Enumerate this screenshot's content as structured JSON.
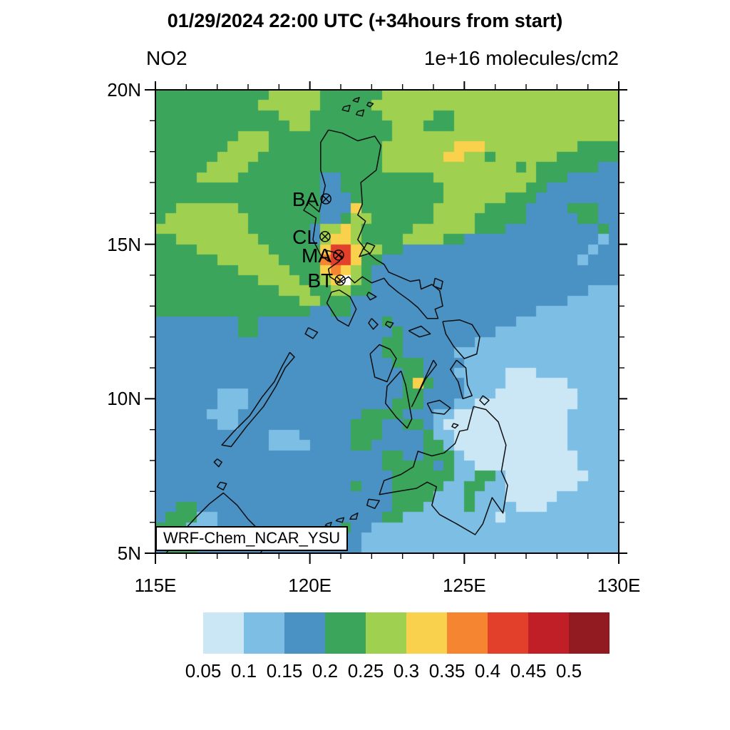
{
  "header": {
    "main_title": "01/29/2024 22:00 UTC (+34hours from start)",
    "subtitle_left": "NO2",
    "subtitle_right": "1e+16 molecules/cm2"
  },
  "model_label": "WRF-Chem_NCAR_YSU",
  "axes": {
    "lon": {
      "min": 115,
      "max": 130,
      "minor_step": 1,
      "major_step": 5,
      "tick_labels": [
        "115E",
        "120E",
        "125E",
        "130E"
      ]
    },
    "lat": {
      "min": 5,
      "max": 20,
      "minor_step": 1,
      "major_step": 5,
      "tick_labels": [
        "20N",
        "15N",
        "10N",
        "5N"
      ]
    }
  },
  "stations": [
    {
      "code": "BA",
      "lon": 120.52,
      "lat": 16.47
    },
    {
      "code": "CL",
      "lon": 120.49,
      "lat": 15.25
    },
    {
      "code": "MA",
      "lon": 120.93,
      "lat": 14.65
    },
    {
      "code": "BT",
      "lon": 120.98,
      "lat": 13.84
    }
  ],
  "colorbar": {
    "labels": [
      "0.05",
      "0.1",
      "0.15",
      "0.2",
      "0.25",
      "0.3",
      "0.35",
      "0.4",
      "0.45",
      "0.5"
    ],
    "colors": [
      "#cbe7f5",
      "#7dbee5",
      "#4a91c4",
      "#3aa55b",
      "#a0d04f",
      "#f9d14c",
      "#f68532",
      "#e2402b",
      "#c11f27",
      "#921b22"
    ]
  },
  "chart_data": {
    "type": "heatmap",
    "title": "01/29/2024 22:00 UTC (+34hours from start)",
    "variable": "NO2",
    "units": "1e+16 molecules/cm2",
    "xlabel_ticks": [
      "115E",
      "120E",
      "125E",
      "130E"
    ],
    "ylabel_ticks": [
      "20N",
      "15N",
      "10N",
      "5N"
    ],
    "lon_range": [
      115,
      130
    ],
    "lat_range": [
      5,
      20
    ],
    "levels": [
      0.05,
      0.1,
      0.15,
      0.2,
      0.25,
      0.3,
      0.35,
      0.4,
      0.45,
      0.5
    ],
    "legend_position": "bottom",
    "grid_size": [
      45,
      45
    ],
    "palette": {
      "w": "#ffffff",
      "0": "#cbe7f5",
      "1": "#7dbee5",
      "2": "#4a91c4",
      "3": "#3aa55b",
      "4": "#a0d04f",
      "5": "#f9d14c",
      "6": "#f68532",
      "7": "#e2402b",
      "8": "#c11f27",
      "9": "#921b22"
    },
    "cells": [
      "333333333334444433333344444444444444444444444",
      "333333333344444433333444444444444444444444444",
      "333333333333444333333344444334444444444444444",
      "333333333333344333333334443334444444444444444",
      "333333334443333333333334444444444444444444444",
      "333333344443333333333344444445554444444443333",
      "333333444433333333333344444455443444444333333",
      "333334444333333333333344444444444443433333322",
      "333344443333333322333333333444444444433322222",
      "333333333333333322333333333344444444332222222",
      "333333333333333322233333333344444433322222222",
      "334444443333333322253333333444443333222233322",
      "344444444333333322344333333444433333222223322",
      "444444444333333244543333344444433322222222232",
      "334444444433333245543333444433222222222222212",
      "333344444443333357754433222222222222222222122",
      "333333444444333367753322222222222222222221222",
      "333333334444433356543222222222222222222222222",
      "333333333344443345w43222222222222222222222222",
      "333333333333444334433222222222222222222222111",
      "333333333333334433322222222222222222222211111",
      "333333333333333223322222222222222222211111111",
      "222222223322222222222232222222222221111111111",
      "222222223322222222222223222222222111111111111",
      "222222222222222222222233222222211111111111111",
      "222222222222222222222233222221111111111111111",
      "222222222222222222222223332222111111111111111",
      "222222222222222222222222332221111100011111111",
      "222222222222222222222222353222111100000011111",
      "222222111222222222222222332222111000000001111",
      "222222111222222222222223332221100000000001111",
      "222221112222222222223333222110000000000011111",
      "222222112222222222233322332100000000000011111",
      "222222222221112222233322223110000000000011111",
      "222222222221111222233222223310000000000011111",
      "222222222222222222222233223331000000000001111",
      "222222222222222222222233333231100000000001111",
      "222222222222222222222223333331133100000000111",
      "222222222222222222232223333311331100000001111",
      "222222222222222222222223333111311100000111111",
      "223322222222222222222223331111311110001111111",
      "233311222222222222222233111111111011111111111",
      "333111222222222222322111111111111111111111111",
      "332222112222222222221111111111111111111111111",
      "233322222222222222221111111111111111111111111"
    ],
    "coastlines": [
      [
        [
          120.6,
          18.7
        ],
        [
          121.05,
          18.6
        ],
        [
          121.55,
          18.35
        ],
        [
          122.1,
          18.5
        ],
        [
          122.3,
          18.2
        ],
        [
          122.15,
          17.4
        ],
        [
          121.65,
          17.0
        ],
        [
          121.7,
          16.3
        ],
        [
          121.55,
          15.95
        ],
        [
          121.8,
          15.75
        ],
        [
          121.55,
          15.15
        ],
        [
          121.75,
          14.9
        ],
        [
          121.6,
          14.6
        ],
        [
          121.9,
          14.7
        ],
        [
          122.15,
          14.5
        ],
        [
          122.4,
          14.35
        ],
        [
          122.55,
          14.1
        ],
        [
          122.9,
          13.95
        ],
        [
          123.25,
          13.8
        ],
        [
          123.55,
          13.85
        ],
        [
          123.6,
          13.55
        ],
        [
          123.95,
          13.7
        ],
        [
          124.2,
          13.5
        ],
        [
          124.3,
          13.0
        ],
        [
          124.05,
          12.9
        ],
        [
          124.15,
          12.6
        ],
        [
          123.8,
          12.6
        ],
        [
          123.5,
          12.95
        ],
        [
          123.2,
          13.2
        ],
        [
          122.85,
          13.45
        ],
        [
          122.55,
          13.7
        ],
        [
          122.4,
          13.9
        ],
        [
          122.0,
          13.75
        ],
        [
          121.7,
          13.95
        ],
        [
          121.45,
          13.75
        ],
        [
          121.25,
          13.95
        ],
        [
          120.95,
          13.75
        ],
        [
          120.65,
          13.95
        ],
        [
          120.6,
          14.2
        ],
        [
          120.95,
          14.45
        ],
        [
          121.05,
          14.6
        ],
        [
          120.75,
          14.75
        ],
        [
          120.55,
          14.8
        ],
        [
          120.6,
          14.45
        ],
        [
          120.35,
          14.65
        ],
        [
          120.1,
          15.15
        ],
        [
          120.2,
          15.85
        ],
        [
          119.8,
          16.1
        ],
        [
          119.95,
          16.35
        ],
        [
          120.3,
          16.05
        ],
        [
          120.5,
          16.9
        ],
        [
          120.35,
          17.4
        ],
        [
          120.35,
          18.3
        ],
        [
          120.6,
          18.7
        ]
      ],
      [
        [
          120.95,
          13.52
        ],
        [
          121.3,
          13.3
        ],
        [
          121.5,
          12.9
        ],
        [
          121.25,
          12.35
        ],
        [
          120.9,
          12.55
        ],
        [
          120.55,
          13.1
        ],
        [
          120.7,
          13.45
        ],
        [
          120.95,
          13.52
        ]
      ],
      [
        [
          119.35,
          11.5
        ],
        [
          119.1,
          11.05
        ],
        [
          118.85,
          10.55
        ],
        [
          118.45,
          10.05
        ],
        [
          118.05,
          9.45
        ],
        [
          117.55,
          8.95
        ],
        [
          117.15,
          8.5
        ],
        [
          117.45,
          8.45
        ],
        [
          117.95,
          9.1
        ],
        [
          118.5,
          9.75
        ],
        [
          118.9,
          10.4
        ],
        [
          119.2,
          11.0
        ],
        [
          119.5,
          11.35
        ],
        [
          119.35,
          11.5
        ]
      ],
      [
        [
          119.95,
          12.3
        ],
        [
          120.25,
          12.15
        ],
        [
          120.1,
          11.95
        ],
        [
          119.85,
          12.1
        ],
        [
          119.95,
          12.3
        ]
      ],
      [
        [
          121.95,
          11.45
        ],
        [
          122.25,
          11.75
        ],
        [
          122.6,
          11.6
        ],
        [
          122.8,
          11.3
        ],
        [
          122.6,
          10.8
        ],
        [
          122.5,
          10.55
        ],
        [
          122.1,
          10.7
        ],
        [
          121.95,
          11.45
        ]
      ],
      [
        [
          122.95,
          10.9
        ],
        [
          122.5,
          10.4
        ],
        [
          122.45,
          9.85
        ],
        [
          122.8,
          9.4
        ],
        [
          123.15,
          9.05
        ],
        [
          123.3,
          9.35
        ],
        [
          123.2,
          9.9
        ],
        [
          123.1,
          10.45
        ],
        [
          122.95,
          10.9
        ]
      ],
      [
        [
          124.0,
          11.25
        ],
        [
          123.65,
          10.5
        ],
        [
          123.4,
          9.95
        ],
        [
          123.3,
          9.75
        ],
        [
          123.5,
          10.15
        ],
        [
          123.75,
          10.65
        ],
        [
          124.1,
          11.1
        ],
        [
          124.0,
          11.25
        ]
      ],
      [
        [
          123.8,
          9.85
        ],
        [
          124.2,
          9.95
        ],
        [
          124.55,
          9.7
        ],
        [
          124.35,
          9.5
        ],
        [
          123.95,
          9.55
        ],
        [
          123.8,
          9.85
        ]
      ],
      [
        [
          124.3,
          12.5
        ],
        [
          124.85,
          12.55
        ],
        [
          125.25,
          12.4
        ],
        [
          125.5,
          12.0
        ],
        [
          125.4,
          11.45
        ],
        [
          125.0,
          11.3
        ],
        [
          124.65,
          11.7
        ],
        [
          124.4,
          12.1
        ],
        [
          124.3,
          12.5
        ]
      ],
      [
        [
          124.75,
          11.25
        ],
        [
          125.05,
          11.0
        ],
        [
          125.1,
          10.45
        ],
        [
          125.25,
          10.1
        ],
        [
          124.95,
          10.0
        ],
        [
          124.8,
          10.55
        ],
        [
          124.55,
          10.95
        ],
        [
          124.75,
          11.25
        ]
      ],
      [
        [
          123.2,
          12.2
        ],
        [
          123.6,
          12.35
        ],
        [
          123.9,
          12.1
        ],
        [
          123.55,
          12.0
        ],
        [
          123.2,
          12.2
        ]
      ],
      [
        [
          121.9,
          13.45
        ],
        [
          122.15,
          13.3
        ],
        [
          121.95,
          13.2
        ],
        [
          121.85,
          13.35
        ],
        [
          121.9,
          13.45
        ]
      ],
      [
        [
          124.05,
          13.9
        ],
        [
          124.3,
          13.8
        ],
        [
          124.25,
          13.55
        ],
        [
          124.0,
          13.65
        ],
        [
          124.05,
          13.9
        ]
      ],
      [
        [
          125.3,
          9.75
        ],
        [
          125.7,
          9.65
        ],
        [
          126.1,
          9.25
        ],
        [
          126.35,
          8.5
        ],
        [
          126.2,
          7.65
        ],
        [
          126.4,
          7.2
        ],
        [
          126.25,
          6.3
        ],
        [
          125.9,
          6.8
        ],
        [
          125.6,
          5.95
        ],
        [
          125.35,
          5.6
        ],
        [
          124.75,
          5.95
        ],
        [
          124.2,
          6.25
        ],
        [
          123.95,
          6.55
        ],
        [
          124.1,
          7.15
        ],
        [
          123.8,
          7.3
        ],
        [
          123.45,
          7.1
        ],
        [
          122.85,
          7.0
        ],
        [
          122.25,
          6.9
        ],
        [
          122.4,
          7.35
        ],
        [
          122.95,
          7.55
        ],
        [
          123.35,
          7.8
        ],
        [
          123.5,
          8.3
        ],
        [
          123.95,
          8.15
        ],
        [
          124.35,
          8.25
        ],
        [
          124.7,
          8.55
        ],
        [
          124.85,
          8.95
        ],
        [
          125.1,
          9.0
        ],
        [
          125.3,
          9.75
        ]
      ],
      [
        [
          115.35,
          5.0
        ],
        [
          115.75,
          5.55
        ],
        [
          116.3,
          6.15
        ],
        [
          116.75,
          6.6
        ],
        [
          117.2,
          6.95
        ],
        [
          117.65,
          6.55
        ],
        [
          118.0,
          6.1
        ],
        [
          118.35,
          5.75
        ],
        [
          118.15,
          5.4
        ],
        [
          118.55,
          5.25
        ],
        [
          118.4,
          5.0
        ]
      ],
      [
        [
          121.1,
          19.45
        ],
        [
          121.3,
          19.5
        ],
        [
          121.25,
          19.3
        ],
        [
          121.05,
          19.35
        ],
        [
          121.1,
          19.45
        ]
      ],
      [
        [
          121.55,
          19.3
        ],
        [
          121.75,
          19.35
        ],
        [
          121.7,
          19.15
        ],
        [
          121.5,
          19.2
        ],
        [
          121.55,
          19.3
        ]
      ],
      [
        [
          121.9,
          19.6
        ],
        [
          122.05,
          19.55
        ],
        [
          121.95,
          19.45
        ],
        [
          121.85,
          19.5
        ],
        [
          121.9,
          19.6
        ]
      ],
      [
        [
          121.45,
          19.7
        ],
        [
          121.6,
          19.75
        ],
        [
          121.55,
          19.6
        ],
        [
          121.4,
          19.65
        ],
        [
          121.45,
          19.7
        ]
      ],
      [
        [
          121.85,
          15.05
        ],
        [
          122.1,
          14.95
        ],
        [
          121.95,
          14.7
        ],
        [
          121.75,
          14.85
        ],
        [
          121.85,
          15.05
        ]
      ],
      [
        [
          122.0,
          12.6
        ],
        [
          122.2,
          12.4
        ],
        [
          122.05,
          12.25
        ],
        [
          121.9,
          12.45
        ],
        [
          122.0,
          12.6
        ]
      ],
      [
        [
          122.5,
          12.5
        ],
        [
          122.7,
          12.45
        ],
        [
          122.6,
          12.3
        ],
        [
          122.45,
          12.4
        ],
        [
          122.5,
          12.5
        ]
      ],
      [
        [
          120.9,
          6.1
        ],
        [
          121.1,
          6.15
        ],
        [
          121.05,
          6.0
        ],
        [
          120.85,
          6.05
        ],
        [
          120.9,
          6.1
        ]
      ],
      [
        [
          121.35,
          6.2
        ],
        [
          121.55,
          6.3
        ],
        [
          121.5,
          6.1
        ],
        [
          121.3,
          6.1
        ],
        [
          121.35,
          6.2
        ]
      ],
      [
        [
          121.9,
          6.75
        ],
        [
          122.25,
          6.7
        ],
        [
          122.1,
          6.45
        ],
        [
          121.85,
          6.55
        ],
        [
          121.9,
          6.75
        ]
      ],
      [
        [
          120.55,
          5.95
        ],
        [
          120.7,
          6.0
        ],
        [
          120.65,
          5.85
        ],
        [
          120.5,
          5.9
        ],
        [
          120.55,
          5.95
        ]
      ],
      [
        [
          117.0,
          8.05
        ],
        [
          117.15,
          7.95
        ],
        [
          117.05,
          7.8
        ],
        [
          116.9,
          7.95
        ],
        [
          117.0,
          8.05
        ]
      ],
      [
        [
          117.1,
          7.3
        ],
        [
          117.3,
          7.25
        ],
        [
          117.2,
          7.05
        ],
        [
          117.0,
          7.15
        ],
        [
          117.1,
          7.3
        ]
      ],
      [
        [
          125.6,
          10.1
        ],
        [
          125.8,
          9.95
        ],
        [
          125.65,
          9.8
        ],
        [
          125.5,
          9.95
        ],
        [
          125.6,
          10.1
        ]
      ],
      [
        [
          124.65,
          9.2
        ],
        [
          124.8,
          9.15
        ],
        [
          124.7,
          9.05
        ],
        [
          124.6,
          9.1
        ],
        [
          124.65,
          9.2
        ]
      ]
    ]
  },
  "layout_colors": {
    "frame": "#000000",
    "coastline": "#0d0d0d",
    "background": "#ffffff"
  }
}
